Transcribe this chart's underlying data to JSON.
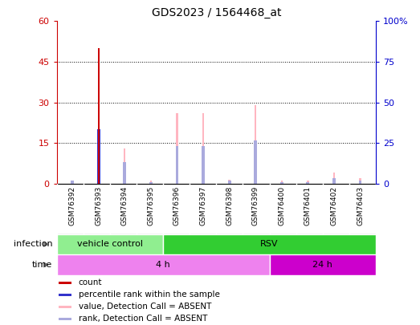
{
  "title": "GDS2023 / 1564468_at",
  "samples": [
    "GSM76392",
    "GSM76393",
    "GSM76394",
    "GSM76395",
    "GSM76396",
    "GSM76397",
    "GSM76398",
    "GSM76399",
    "GSM76400",
    "GSM76401",
    "GSM76402",
    "GSM76403"
  ],
  "count_values": [
    0,
    50,
    0,
    0,
    0,
    0,
    0,
    0,
    0,
    0,
    0,
    0
  ],
  "rank_values": [
    0,
    20,
    0,
    0,
    0,
    0,
    0,
    0,
    0,
    0,
    0,
    0
  ],
  "absent_value_bars": [
    1,
    0,
    13,
    1,
    26,
    26,
    1.5,
    29,
    1,
    1,
    4,
    2
  ],
  "absent_rank_bars": [
    1,
    0,
    8,
    0.5,
    14,
    14,
    1,
    16,
    0.5,
    0.5,
    2,
    1
  ],
  "ylim": [
    0,
    60
  ],
  "yticks": [
    0,
    15,
    30,
    45,
    60
  ],
  "ytick_labels": [
    "0",
    "15",
    "30",
    "45",
    "60"
  ],
  "y2lim": [
    0,
    100
  ],
  "y2ticks": [
    0,
    25,
    50,
    75,
    100
  ],
  "y2tick_labels": [
    "0",
    "25",
    "50",
    "75",
    "100%"
  ],
  "infection_groups": [
    {
      "label": "vehicle control",
      "start": 0,
      "end": 4,
      "color": "#90ee90"
    },
    {
      "label": "RSV",
      "start": 4,
      "end": 12,
      "color": "#32cd32"
    }
  ],
  "time_groups": [
    {
      "label": "4 h",
      "start": 0,
      "end": 8,
      "color": "#ee82ee"
    },
    {
      "label": "24 h",
      "start": 8,
      "end": 12,
      "color": "#cc00cc"
    }
  ],
  "bar_color_count": "#cc0000",
  "bar_color_rank": "#3333cc",
  "bar_color_absent_value": "#ffb6c1",
  "bar_color_absent_rank": "#aaaadd",
  "bg_color": "#ffffff",
  "plot_bg": "#ffffff",
  "legend_items": [
    {
      "color": "#cc0000",
      "label": "count"
    },
    {
      "color": "#3333cc",
      "label": "percentile rank within the sample"
    },
    {
      "color": "#ffb6c1",
      "label": "value, Detection Call = ABSENT"
    },
    {
      "color": "#aaaadd",
      "label": "rank, Detection Call = ABSENT"
    }
  ]
}
